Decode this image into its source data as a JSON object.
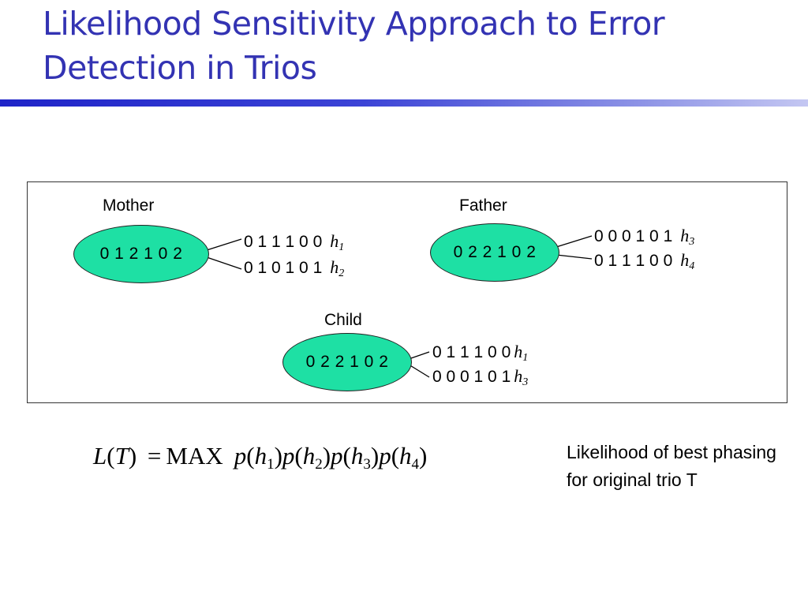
{
  "title": {
    "line1": "Likelihood Sensitivity Approach to Error",
    "line2": "Detection in Trios"
  },
  "colors": {
    "title": "#3333b3",
    "ellipse_fill": "#1ee0a4",
    "rule": "#1f24c8"
  },
  "mother": {
    "label": "Mother",
    "genotype": "0 1 2 1 0 2",
    "haplotypes": [
      {
        "alleles": "0 1 1 1 0 0",
        "name": "h",
        "index": "1"
      },
      {
        "alleles": "0 1 0 1 0 1",
        "name": "h",
        "index": "2"
      }
    ]
  },
  "father": {
    "label": "Father",
    "genotype": "0 2 2 1 0 2",
    "haplotypes": [
      {
        "alleles": "0 0 0 1 0 1",
        "name": "h",
        "index": "3"
      },
      {
        "alleles": "0 1 1 1 0 0",
        "name": "h",
        "index": "4"
      }
    ]
  },
  "child": {
    "label": "Child",
    "genotype": "0 2 2 1 0 2",
    "haplotypes": [
      {
        "alleles": "0 1 1 1 0 0",
        "name": "h",
        "index": "1"
      },
      {
        "alleles": "0 0 0 1 0 1",
        "name": "h",
        "index": "3"
      }
    ]
  },
  "formula": {
    "lhs": "L",
    "lhs_arg": "T",
    "equals": "=",
    "op": "MAX",
    "terms": [
      {
        "fn": "p",
        "var": "h",
        "sub": "1"
      },
      {
        "fn": "p",
        "var": "h",
        "sub": "2"
      },
      {
        "fn": "p",
        "var": "h",
        "sub": "3"
      },
      {
        "fn": "p",
        "var": "h",
        "sub": "4"
      }
    ]
  },
  "caption": "Likelihood of best phasing for original trio T"
}
